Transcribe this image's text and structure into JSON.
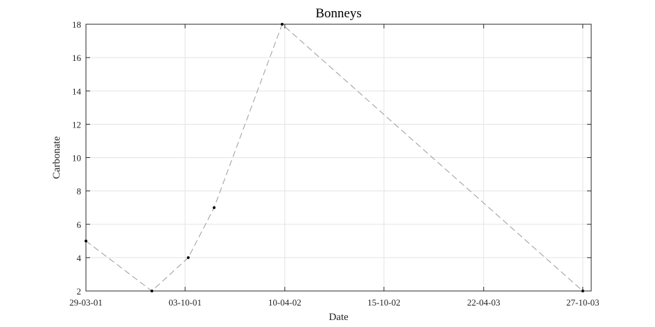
{
  "chart_data": {
    "type": "line",
    "title": "Bonneys",
    "xlabel": "Date",
    "ylabel": "Carbonate",
    "x_tick_labels": [
      "29-03-01",
      "03-10-01",
      "10-04-02",
      "15-10-02",
      "22-04-03",
      "27-10-03"
    ],
    "x_ticks": [
      "2001-03-29",
      "2001-10-03",
      "2002-04-10",
      "2002-10-15",
      "2003-04-22",
      "2003-10-27"
    ],
    "xlim": [
      "2001-03-29",
      "2003-11-12"
    ],
    "y_ticks": [
      2,
      4,
      6,
      8,
      10,
      12,
      14,
      16,
      18
    ],
    "ylim": [
      2,
      18
    ],
    "grid": true,
    "series": [
      {
        "x": [
          "2001-03-29",
          "2001-08-01",
          "2001-10-09",
          "2001-11-27",
          "2002-04-05",
          "2003-10-27"
        ],
        "y": [
          5,
          2,
          4,
          7,
          18,
          2
        ],
        "line_style": "dashed",
        "line_color": "#999999",
        "marker_color": "#000000"
      }
    ]
  }
}
